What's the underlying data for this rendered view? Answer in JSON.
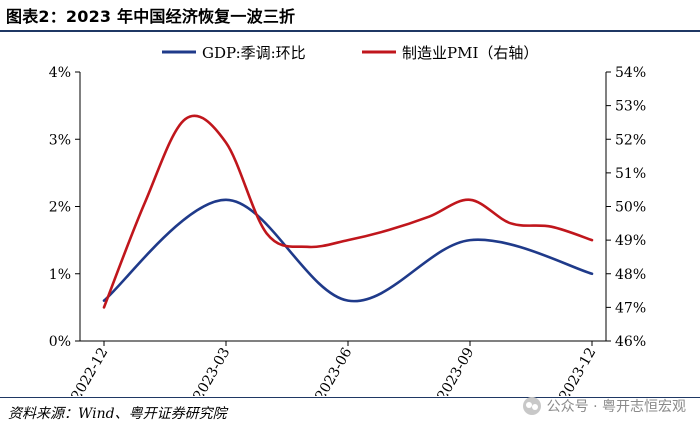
{
  "figure_title": "图表2：2023 年中国经济恢复一波三折",
  "source_note": "资料来源：Wind、粤开证券研究院",
  "watermark": "公众号 · 粤开志恒宏观",
  "chart_data": {
    "type": "line",
    "x": [
      "2022-12",
      "2023-01",
      "2023-02",
      "2023-03",
      "2023-04",
      "2023-05",
      "2023-06",
      "2023-07",
      "2023-08",
      "2023-09",
      "2023-10",
      "2023-11",
      "2023-12"
    ],
    "tick_labels": [
      "2022-12",
      "2023-03",
      "2023-06",
      "2023-09",
      "2023-12"
    ],
    "series": [
      {
        "name": "GDP:季调:环比",
        "axis": "left",
        "color": "#1f3a8a",
        "x": [
          "2022-12",
          "2023-03",
          "2023-06",
          "2023-09",
          "2023-12"
        ],
        "values": [
          0.6,
          2.1,
          0.6,
          1.5,
          1.0
        ]
      },
      {
        "name": "制造业PMI（右轴）",
        "axis": "right",
        "color": "#c0161c",
        "x": [
          "2022-12",
          "2023-01",
          "2023-02",
          "2023-03",
          "2023-04",
          "2023-05",
          "2023-06",
          "2023-07",
          "2023-08",
          "2023-09",
          "2023-10",
          "2023-11",
          "2023-12"
        ],
        "values": [
          47.0,
          50.1,
          52.6,
          51.9,
          49.2,
          48.8,
          49.0,
          49.3,
          49.7,
          50.2,
          49.5,
          49.4,
          49.0
        ]
      }
    ],
    "left_axis": {
      "ylim": [
        0,
        4
      ],
      "ticks": [
        "0%",
        "1%",
        "2%",
        "3%",
        "4%"
      ]
    },
    "right_axis": {
      "ylim": [
        46,
        54
      ],
      "ticks": [
        "46%",
        "47%",
        "48%",
        "49%",
        "50%",
        "51%",
        "52%",
        "53%",
        "54%"
      ]
    },
    "legend_position": "top-center",
    "grid": false
  }
}
